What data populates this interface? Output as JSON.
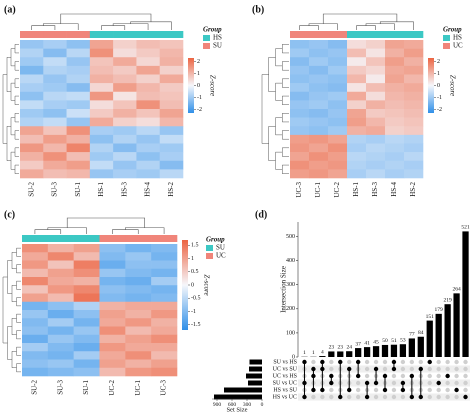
{
  "chart_data": [
    {
      "type": "heatmap",
      "label": "(a)",
      "columns": [
        "SU-2",
        "SU-3",
        "SU-1",
        "HS-1",
        "HS-3",
        "HS-4",
        "HS-2"
      ],
      "groups": [
        1,
        1,
        1,
        0,
        0,
        0,
        0
      ],
      "legend_title": "Group",
      "legend": [
        {
          "name": "HS",
          "color": "#3cc8c4"
        },
        {
          "name": "SU",
          "color": "#f0857a"
        }
      ],
      "colorbar_title": "Z-score",
      "zlim": [
        -2.3,
        2.3
      ],
      "zticks": [
        2,
        1,
        0,
        -1,
        -2
      ],
      "colors": {
        "low": "#2f8fe8",
        "mid": "#f6f7fb",
        "high": "#ec6442"
      },
      "values": [
        [
          -1.1,
          -0.9,
          -1.2,
          1.3,
          0.6,
          0.9,
          0.8
        ],
        [
          -0.8,
          -1.3,
          -0.7,
          1.6,
          0.4,
          0.7,
          1.0
        ],
        [
          -1.0,
          -0.6,
          -1.1,
          0.8,
          1.2,
          0.5,
          1.1
        ],
        [
          -1.4,
          -0.8,
          -0.9,
          0.9,
          0.7,
          1.3,
          0.6
        ],
        [
          -0.7,
          -1.1,
          -0.8,
          1.1,
          0.9,
          0.6,
          1.2
        ],
        [
          -0.9,
          -1.0,
          -1.3,
          0.5,
          1.4,
          1.0,
          0.7
        ],
        [
          -1.2,
          -0.7,
          -0.6,
          1.5,
          0.3,
          0.9,
          0.8
        ],
        [
          -0.6,
          -0.9,
          -1.0,
          0.4,
          0.8,
          1.6,
          0.9
        ],
        [
          -1.0,
          -1.2,
          -0.5,
          0.7,
          1.1,
          0.8,
          1.3
        ],
        [
          -0.8,
          -0.6,
          -1.1,
          1.2,
          0.6,
          0.4,
          1.0
        ],
        [
          1.3,
          0.8,
          1.6,
          -0.9,
          -1.0,
          -0.7,
          -1.1
        ],
        [
          0.9,
          1.4,
          1.1,
          -1.2,
          -0.8,
          -1.1,
          -0.6
        ],
        [
          1.5,
          1.0,
          1.8,
          -0.8,
          -1.3,
          -0.9,
          -1.0
        ],
        [
          1.1,
          1.6,
          0.9,
          -1.0,
          -0.7,
          -1.2,
          -0.9
        ],
        [
          0.7,
          1.2,
          1.4,
          -0.6,
          -1.1,
          -0.8,
          -1.3
        ],
        [
          1.2,
          0.9,
          1.0,
          -1.1,
          -0.9,
          -1.0,
          -0.7
        ]
      ]
    },
    {
      "type": "heatmap",
      "label": "(b)",
      "columns": [
        "UC-3",
        "UC-1",
        "UC-2",
        "HS-1",
        "HS-3",
        "HS-4",
        "HS-2"
      ],
      "groups": [
        1,
        1,
        1,
        0,
        0,
        0,
        0
      ],
      "legend_title": "Group",
      "legend": [
        {
          "name": "HS",
          "color": "#3cc8c4"
        },
        {
          "name": "UC",
          "color": "#f0857a"
        }
      ],
      "colorbar_title": "Z-score",
      "zlim": [
        -2.3,
        2.3
      ],
      "zticks": [
        2,
        1,
        0,
        -1,
        -2
      ],
      "colors": {
        "low": "#2f8fe8",
        "mid": "#f6f7fb",
        "high": "#ec6442"
      },
      "values": [
        [
          -1.2,
          -1.1,
          -1.3,
          0.4,
          0.6,
          1.3,
          1.2
        ],
        [
          -1.0,
          -1.2,
          -1.1,
          0.9,
          0.3,
          1.1,
          1.4
        ],
        [
          -1.3,
          -1.0,
          -1.2,
          0.2,
          0.8,
          1.4,
          1.1
        ],
        [
          -1.1,
          -1.3,
          -1.0,
          0.7,
          0.5,
          1.2,
          1.3
        ],
        [
          -1.2,
          -1.1,
          -1.2,
          1.0,
          0.2,
          1.3,
          1.0
        ],
        [
          -1.0,
          -1.2,
          -1.3,
          0.3,
          0.9,
          1.1,
          1.2
        ],
        [
          -1.3,
          -1.1,
          -1.0,
          1.2,
          0.4,
          1.0,
          1.1
        ],
        [
          -1.1,
          -1.0,
          -1.2,
          0.6,
          1.1,
          0.9,
          1.0
        ],
        [
          -1.2,
          -1.3,
          -1.1,
          1.3,
          0.7,
          0.8,
          0.9
        ],
        [
          -1.0,
          -1.1,
          -1.2,
          1.4,
          1.0,
          0.7,
          0.8
        ],
        [
          -1.1,
          -1.2,
          -1.0,
          1.1,
          1.2,
          0.6,
          0.7
        ],
        [
          1.4,
          1.5,
          1.3,
          -0.8,
          -0.9,
          -0.7,
          -0.8
        ],
        [
          1.5,
          1.3,
          1.6,
          -0.9,
          -0.7,
          -0.8,
          -0.9
        ],
        [
          1.3,
          1.6,
          1.4,
          -0.7,
          -0.8,
          -0.9,
          -0.7
        ],
        [
          1.6,
          1.4,
          1.5,
          -0.8,
          -0.9,
          -0.8,
          -0.9
        ],
        [
          1.4,
          1.5,
          1.3,
          -0.9,
          -0.7,
          -0.9,
          -0.8
        ]
      ]
    },
    {
      "type": "heatmap",
      "label": "(c)",
      "columns": [
        "SU-2",
        "SU-3",
        "SU-1",
        "UC-2",
        "UC-1",
        "UC-3"
      ],
      "groups": [
        0,
        0,
        0,
        1,
        1,
        1
      ],
      "legend_title": "Group",
      "legend": [
        {
          "name": "SU",
          "color": "#3cc8c4"
        },
        {
          "name": "UC",
          "color": "#f0857a"
        }
      ],
      "colorbar_title": "Z-score",
      "zlim": [
        -1.7,
        1.7
      ],
      "zticks": [
        1.5,
        1,
        0.5,
        0,
        -0.5,
        -1,
        -1.5
      ],
      "colors": {
        "low": "#2f8fe8",
        "mid": "#f6f7fb",
        "high": "#ec6442"
      },
      "values": [
        [
          1.2,
          0.8,
          1.0,
          -0.9,
          -1.1,
          -1.0
        ],
        [
          0.9,
          1.3,
          0.7,
          -1.0,
          -0.8,
          -1.1
        ],
        [
          1.1,
          0.6,
          1.4,
          -1.2,
          -0.9,
          -0.9
        ],
        [
          0.7,
          1.0,
          1.2,
          -0.8,
          -1.0,
          -1.1
        ],
        [
          1.3,
          0.9,
          0.8,
          -1.1,
          -1.2,
          -0.7
        ],
        [
          0.6,
          1.1,
          1.3,
          -0.9,
          -1.0,
          -1.1
        ],
        [
          1.0,
          0.7,
          1.5,
          -1.0,
          -1.1,
          -1.0
        ],
        [
          -1.1,
          -0.9,
          -0.6,
          0.8,
          0.9,
          0.9
        ],
        [
          -0.8,
          -1.2,
          -0.9,
          1.0,
          0.8,
          1.1
        ],
        [
          -1.0,
          -0.7,
          -1.1,
          0.9,
          1.1,
          0.8
        ],
        [
          -0.9,
          -1.1,
          -0.8,
          1.2,
          0.7,
          0.9
        ],
        [
          -1.2,
          -0.8,
          -1.0,
          0.8,
          1.0,
          1.2
        ],
        [
          -0.7,
          -1.0,
          -1.2,
          1.1,
          0.9,
          0.9
        ],
        [
          -1.0,
          -1.1,
          -0.7,
          0.9,
          1.2,
          0.7
        ],
        [
          -0.9,
          -0.8,
          -1.1,
          1.0,
          0.8,
          1.0
        ],
        [
          -1.1,
          -1.0,
          -0.9,
          0.7,
          1.1,
          1.2
        ]
      ]
    },
    {
      "type": "upset",
      "label": "(d)",
      "ylabel": "Intersection Size",
      "values": [
        1,
        1,
        4,
        23,
        23,
        24,
        37,
        41,
        45,
        50,
        51,
        53,
        77,
        84,
        151,
        179,
        219,
        264,
        521
      ],
      "ylim": [
        0,
        560
      ],
      "yticks": [
        0,
        100,
        200,
        300,
        400,
        500
      ],
      "color": "#000000",
      "set_names": [
        "SU vs HS",
        "UC vs SU",
        "UC vs HS",
        "SU vs UC",
        "HS vs SU",
        "HS vs UC"
      ],
      "set_sizes": [
        250,
        260,
        320,
        280,
        760,
        960
      ],
      "set_xlim": [
        0,
        1000
      ],
      "set_xticks": [
        900,
        600,
        300,
        0
      ],
      "set_xlabel": "Set Size",
      "intersections": [
        [
          0,
          3,
          5
        ],
        [
          1,
          2,
          4
        ],
        [
          0,
          1,
          4
        ],
        [
          2,
          3
        ],
        [
          0,
          5
        ],
        [
          1,
          4
        ],
        [
          0,
          2
        ],
        [
          3,
          5
        ],
        [
          1,
          3
        ],
        [
          2,
          4
        ],
        [
          0,
          1
        ],
        [
          3,
          4
        ],
        [
          2,
          5
        ],
        [
          1,
          5
        ],
        [
          0
        ],
        [
          3
        ],
        [
          2
        ],
        [
          4
        ],
        [
          5
        ]
      ]
    }
  ]
}
